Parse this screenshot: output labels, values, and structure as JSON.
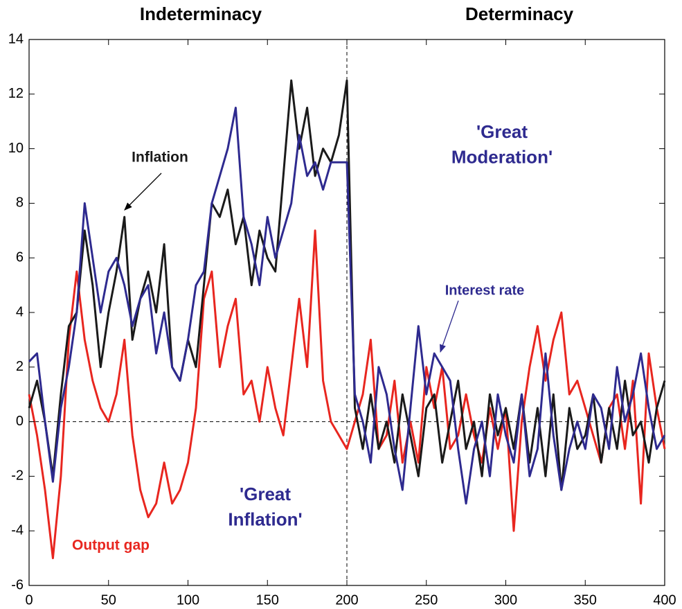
{
  "chart_data": {
    "type": "line",
    "x": [
      0,
      5,
      10,
      15,
      20,
      25,
      30,
      35,
      40,
      45,
      50,
      55,
      60,
      65,
      70,
      75,
      80,
      85,
      90,
      95,
      100,
      105,
      110,
      115,
      120,
      125,
      130,
      135,
      140,
      145,
      150,
      155,
      160,
      165,
      170,
      175,
      180,
      185,
      190,
      195,
      200,
      205,
      210,
      215,
      220,
      225,
      230,
      235,
      240,
      245,
      250,
      255,
      260,
      265,
      270,
      275,
      280,
      285,
      290,
      295,
      300,
      305,
      310,
      315,
      320,
      325,
      330,
      335,
      340,
      345,
      350,
      355,
      360,
      365,
      370,
      375,
      380,
      385,
      390,
      395,
      400
    ],
    "series": [
      {
        "name": "Output gap",
        "color": "#e8261f",
        "values": [
          1,
          -0.5,
          -2.5,
          -5,
          -2,
          3,
          5.5,
          3,
          1.5,
          0.5,
          0,
          1,
          3,
          -0.5,
          -2.5,
          -3.5,
          -3,
          -1.5,
          -3,
          -2.5,
          -1.5,
          0.5,
          4.5,
          5.5,
          2,
          3.5,
          4.5,
          1,
          1.5,
          0,
          2,
          0.5,
          -0.5,
          2,
          4.5,
          2,
          7,
          1.5,
          0,
          -0.5,
          -1,
          0,
          1,
          3,
          -1,
          -0.5,
          1.5,
          -1.5,
          0,
          -1.5,
          2,
          0.5,
          2,
          -1,
          -0.5,
          1,
          -0.5,
          -1.5,
          0.5,
          -1,
          0.5,
          -4,
          0,
          2,
          3.5,
          1.5,
          3,
          4,
          1,
          1.5,
          0.5,
          -0.5,
          -1.5,
          0.5,
          1,
          -1,
          1.5,
          -3,
          2.5,
          0.5,
          -1
        ]
      },
      {
        "name": "Inflation",
        "color": "#1a1a1a",
        "values": [
          0.5,
          1.5,
          0,
          -2,
          1,
          3.5,
          4,
          7,
          5,
          2,
          4,
          5.5,
          7.5,
          3,
          4.5,
          5.5,
          4,
          6.5,
          2,
          1.5,
          3,
          2,
          5,
          8,
          7.5,
          8.5,
          6.5,
          7.5,
          5,
          7,
          6,
          5.5,
          9,
          12.5,
          10,
          11.5,
          9,
          10,
          9.5,
          10.5,
          12.5,
          0.5,
          -1,
          1,
          -1,
          0,
          -1.5,
          1,
          -0.5,
          -2,
          0.5,
          1,
          -1.5,
          0,
          1.5,
          -1,
          0,
          -2,
          1,
          -0.5,
          0.5,
          -1,
          1,
          -1.5,
          0.5,
          -2,
          1,
          -2.5,
          0.5,
          -1,
          -0.5,
          1,
          -1.5,
          0.5,
          -1,
          1.5,
          -0.5,
          0,
          -1.5,
          0.5,
          1.5
        ]
      },
      {
        "name": "Interest rate",
        "color": "#2e2a8f",
        "values": [
          2.2,
          2.5,
          0,
          -2.2,
          0.5,
          2,
          4,
          8,
          6,
          4,
          5.5,
          6,
          5,
          3.5,
          4.5,
          5,
          2.5,
          4,
          2,
          1.5,
          3,
          5,
          5.5,
          8,
          9,
          10,
          11.5,
          7.5,
          6.5,
          5,
          7.5,
          6,
          7,
          8,
          10.5,
          9,
          9.5,
          8.5,
          9.5,
          9.5,
          9.5,
          1,
          0,
          -1.5,
          2,
          1,
          -1,
          -2.5,
          0.5,
          3.5,
          1,
          2.5,
          2,
          1.5,
          -1,
          -3,
          -1,
          0,
          -2,
          1,
          -0.5,
          -1.5,
          1,
          -2,
          -1,
          2.5,
          -0.5,
          -2.5,
          -1,
          0,
          -1,
          1,
          0.5,
          -1,
          2,
          0,
          1,
          2.5,
          0.5,
          -1,
          -0.5
        ]
      }
    ],
    "xlim": [
      0,
      400
    ],
    "ylim": [
      -6,
      14
    ],
    "xticks": [
      0,
      50,
      100,
      150,
      200,
      250,
      300,
      350,
      400
    ],
    "yticks": [
      -6,
      -4,
      -2,
      0,
      2,
      4,
      6,
      8,
      10,
      12,
      14
    ],
    "hline": 0,
    "vline": 200,
    "annotations": [
      {
        "lines": [
          "Indeterminacy"
        ],
        "color": "#000000"
      },
      {
        "lines": [
          "Determinacy"
        ],
        "color": "#000000"
      },
      {
        "lines": [
          "Inflation"
        ],
        "color": "#1a1a1a"
      },
      {
        "lines": [
          "'Great",
          "Moderation'"
        ],
        "color": "#2e2a8f"
      },
      {
        "lines": [
          "Interest rate"
        ],
        "color": "#2e2a8f"
      },
      {
        "lines": [
          "'Great",
          "Inflation'"
        ],
        "color": "#2e2a8f"
      },
      {
        "lines": [
          "Output gap"
        ],
        "color": "#e8261f"
      }
    ]
  }
}
